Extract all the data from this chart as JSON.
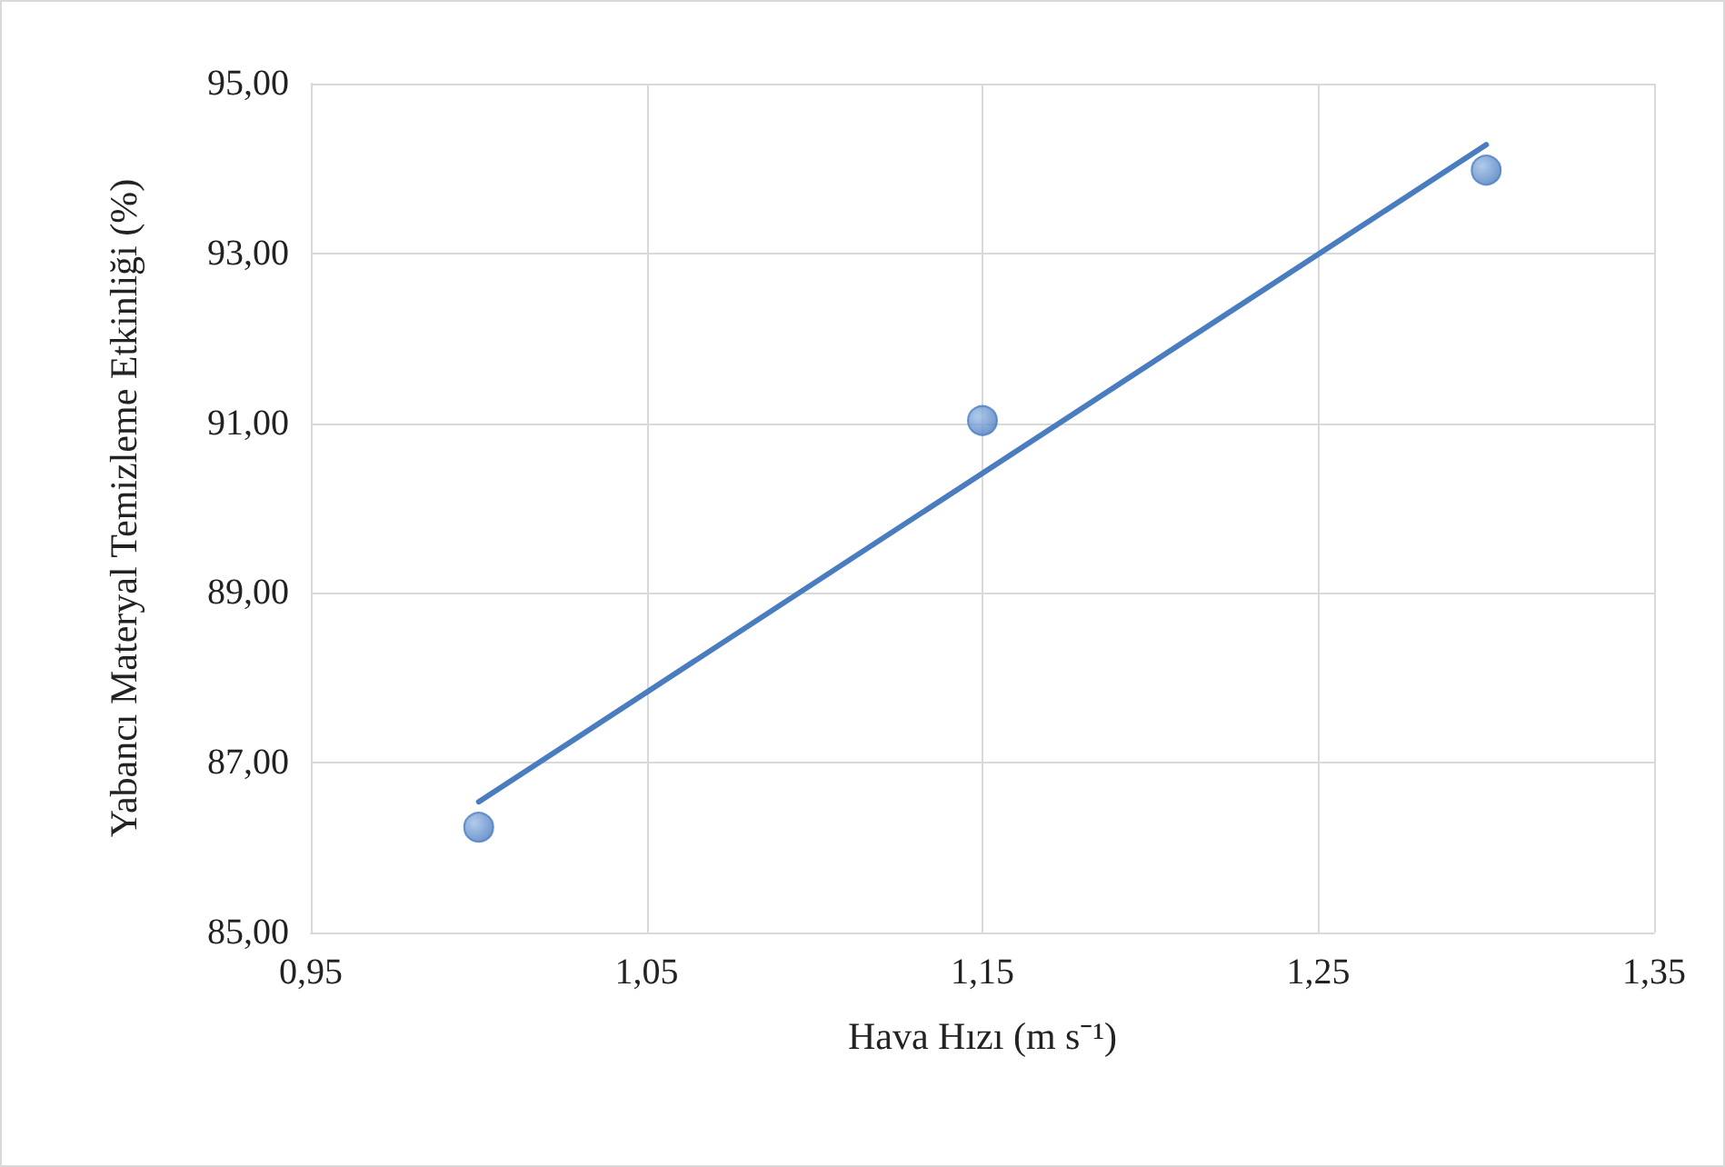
{
  "chart_data": {
    "type": "scatter",
    "xlabel": "Hava Hızı (m s⁻¹)",
    "ylabel": "Yabancı Materyal Temizleme Etkinliği (%)",
    "series": [
      {
        "color": "#4a7cc0",
        "x": [
          1.0,
          1.15,
          1.3
        ],
        "values": [
          86.24,
          91.03,
          93.98
        ],
        "marker": "circle"
      },
      {
        "type": "line",
        "color": "#4a7cc0",
        "x": [
          1.0,
          1.3
        ],
        "values": [
          86.54,
          94.28
        ],
        "marker": "none",
        "line_style": "solid"
      }
    ],
    "xlim": [
      0.95,
      1.35
    ],
    "xticks": [
      {
        "value": 0.95,
        "label": "0,95"
      },
      {
        "value": 1.05,
        "label": "1,05"
      },
      {
        "value": 1.15,
        "label": "1,15"
      },
      {
        "value": 1.25,
        "label": "1,25"
      },
      {
        "value": 1.35,
        "label": "1,35"
      }
    ],
    "ylim": [
      85,
      95
    ],
    "yticks": [
      {
        "value": 85,
        "label": "85,00"
      },
      {
        "value": 87,
        "label": "87,00"
      },
      {
        "value": 89,
        "label": "89,00"
      },
      {
        "value": 91,
        "label": "91,00"
      },
      {
        "value": 93,
        "label": "93,00"
      },
      {
        "value": 95,
        "label": "95,00"
      }
    ],
    "grid": true
  }
}
